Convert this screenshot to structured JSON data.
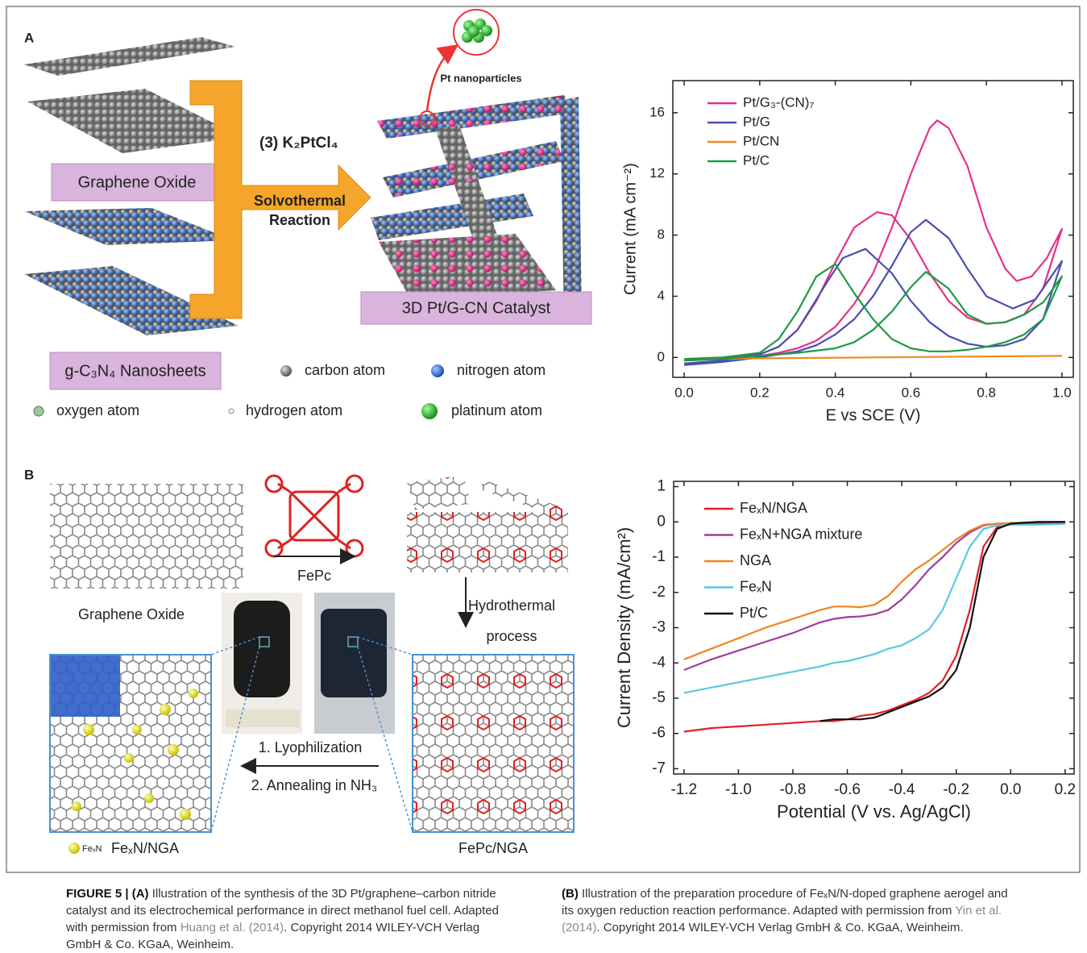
{
  "panel_a": {
    "label": "A",
    "pt_nanoparticles": "Pt nanoparticles",
    "graphene_oxide": "Graphene Oxide",
    "reagent": "(3) K₂PtCl₄",
    "reaction": [
      "Solvothermal",
      "Reaction"
    ],
    "product": "3D Pt/G-CN Catalyst",
    "nanosheets": "g-C₃N₄ Nanosheets",
    "atoms": [
      "carbon atom",
      "nitrogen atom",
      "oxygen atom",
      "hydrogen atom",
      "platinum atom"
    ]
  },
  "panel_b": {
    "label": "B",
    "graphene_oxide": "Graphene Oxide",
    "fepc": "FePc",
    "process": [
      "Hydrothermal",
      "process"
    ],
    "steps": [
      "1. Lyophilization",
      "2. Annealing in NH₃"
    ],
    "fexn": "FeₓN",
    "product": "FeₓN/NGA",
    "intermediate": "FePc/NGA"
  },
  "chart_data": [
    {
      "type": "line",
      "x_label": "E vs SCE (V)",
      "y_label": "Current (mA cm⁻²)",
      "xlim": [
        -0.03,
        1.03
      ],
      "ylim": [
        -1.3,
        18.1
      ],
      "xticks": [
        {
          "value": 0,
          "label": "0.0"
        },
        0.2,
        0.4,
        0.6,
        0.8,
        {
          "value": 1,
          "label": "1.0"
        }
      ],
      "yticks": [
        0,
        4,
        8,
        12,
        16
      ],
      "legend": "upper left",
      "series": [
        {
          "name": "Pt/G₃-(CN)₇",
          "color": "#e5318a",
          "x": [
            0,
            0.1,
            0.2,
            0.25,
            0.3,
            0.35,
            0.4,
            0.45,
            0.5,
            0.55,
            0.6,
            0.65,
            0.67,
            0.7,
            0.75,
            0.8,
            0.85,
            0.88,
            0.92,
            0.96,
            1.0,
            0.95,
            0.9,
            0.85,
            0.8,
            0.75,
            0.7,
            0.65,
            0.6,
            0.55,
            0.51,
            0.45,
            0.4,
            0.35,
            0.3,
            0.25,
            0.2,
            0.1,
            0.0
          ],
          "values": [
            -0.2,
            -0.1,
            0.1,
            0.3,
            0.6,
            1.1,
            2.0,
            3.5,
            5.5,
            8.5,
            12,
            15,
            15.5,
            15,
            12.5,
            8.5,
            5.8,
            5.0,
            5.3,
            6.5,
            8.4,
            4.5,
            2.8,
            2.3,
            2.2,
            2.6,
            3.7,
            5.5,
            7.7,
            9.3,
            9.5,
            8.5,
            6.2,
            3.7,
            1.8,
            0.7,
            0.2,
            0,
            -0.1
          ]
        },
        {
          "name": "Pt/G",
          "color": "#4a4fb0",
          "x": [
            0,
            0.1,
            0.2,
            0.3,
            0.35,
            0.4,
            0.45,
            0.5,
            0.55,
            0.6,
            0.64,
            0.7,
            0.75,
            0.8,
            0.87,
            0.93,
            1.0,
            0.95,
            0.9,
            0.85,
            0.8,
            0.75,
            0.7,
            0.65,
            0.6,
            0.55,
            0.48,
            0.42,
            0.38,
            0.35,
            0.3,
            0.25,
            0.2,
            0.1,
            0.0
          ],
          "values": [
            -0.5,
            -0.3,
            0,
            0.4,
            0.8,
            1.5,
            2.5,
            4.0,
            6.0,
            8.2,
            9.0,
            7.8,
            5.8,
            4.0,
            3.2,
            3.8,
            6.3,
            2.5,
            1.2,
            0.8,
            0.7,
            0.9,
            1.4,
            2.3,
            3.7,
            5.5,
            7.1,
            6.5,
            5.0,
            3.8,
            1.8,
            0.7,
            0.2,
            -0.2,
            -0.4
          ]
        },
        {
          "name": "Pt/CN",
          "color": "#f08a1e",
          "x": [
            0,
            0.5,
            1.0
          ],
          "values": [
            -0.1,
            0,
            0.1
          ]
        },
        {
          "name": "Pt/C",
          "color": "#1e9a45",
          "x": [
            0,
            0.1,
            0.2,
            0.3,
            0.4,
            0.45,
            0.5,
            0.55,
            0.6,
            0.64,
            0.7,
            0.75,
            0.8,
            0.85,
            0.9,
            0.95,
            1.0,
            0.95,
            0.9,
            0.85,
            0.8,
            0.75,
            0.7,
            0.65,
            0.6,
            0.55,
            0.5,
            0.45,
            0.4,
            0.35,
            0.3,
            0.25,
            0.2,
            0.1,
            0.0
          ],
          "values": [
            -0.2,
            -0.1,
            0.1,
            0.3,
            0.6,
            1.0,
            1.8,
            3.0,
            4.6,
            5.6,
            4.5,
            2.8,
            2.2,
            2.3,
            2.8,
            3.6,
            5.3,
            2.5,
            1.5,
            1.0,
            0.7,
            0.5,
            0.4,
            0.4,
            0.6,
            1.2,
            2.5,
            4.2,
            6.1,
            5.3,
            3.0,
            1.2,
            0.3,
            0,
            -0.1
          ]
        }
      ]
    },
    {
      "type": "line",
      "x_label": "Potential (V vs. Ag/AgCl)",
      "y_label": "Current Density  (mA/cm²)",
      "xlim": [
        -1.238,
        0.233
      ],
      "ylim": [
        -7.15,
        1.15
      ],
      "xticks": [
        -1.2,
        {
          "value": -1,
          "label": "-1.0"
        },
        -0.8,
        -0.6,
        -0.4,
        -0.2,
        {
          "value": 0,
          "label": "0.0"
        },
        0.2
      ],
      "yticks": [
        1,
        0,
        -1,
        -2,
        -3,
        -4,
        -5,
        -6,
        -7
      ],
      "legend": "upper left",
      "x": [
        -1.2,
        -1.1,
        -1.0,
        -0.9,
        -0.8,
        -0.7,
        -0.65,
        -0.6,
        -0.55,
        -0.5,
        -0.45,
        -0.4,
        -0.35,
        -0.3,
        -0.25,
        -0.2,
        -0.15,
        -0.1,
        -0.05,
        0.0,
        0.1,
        0.2
      ],
      "series": [
        {
          "name": "FeₓN/NGA",
          "color": "#e41e26",
          "values": [
            -5.95,
            -5.85,
            -5.8,
            -5.75,
            -5.7,
            -5.65,
            -5.65,
            -5.6,
            -5.5,
            -5.45,
            -5.35,
            -5.2,
            -5.05,
            -4.85,
            -4.5,
            -3.8,
            -2.5,
            -0.7,
            -0.15,
            -0.05,
            0,
            0
          ]
        },
        {
          "name": "FeₓN+NGA mixture",
          "color": "#a03ca0",
          "values": [
            -4.2,
            -3.9,
            -3.65,
            -3.4,
            -3.15,
            -2.85,
            -2.75,
            -2.7,
            -2.68,
            -2.62,
            -2.5,
            -2.2,
            -1.8,
            -1.35,
            -1.0,
            -0.6,
            -0.3,
            -0.1,
            -0.05,
            -0.05,
            -0.05,
            -0.05
          ]
        },
        {
          "name": "NGA",
          "color": "#f0841e",
          "values": [
            -3.9,
            -3.6,
            -3.3,
            -3.0,
            -2.75,
            -2.5,
            -2.4,
            -2.4,
            -2.42,
            -2.35,
            -2.1,
            -1.7,
            -1.35,
            -1.1,
            -0.8,
            -0.5,
            -0.25,
            -0.08,
            -0.05,
            -0.03,
            0,
            0
          ]
        },
        {
          "name": "FeₓN",
          "color": "#5bc8e0",
          "values": [
            -4.85,
            -4.7,
            -4.55,
            -4.4,
            -4.25,
            -4.1,
            -4.0,
            -3.95,
            -3.85,
            -3.75,
            -3.6,
            -3.5,
            -3.3,
            -3.05,
            -2.5,
            -1.6,
            -0.7,
            -0.2,
            -0.1,
            -0.08,
            -0.08,
            -0.06
          ]
        },
        {
          "name": "Pt/C",
          "color": "#111111",
          "values": [
            null,
            null,
            null,
            null,
            null,
            -5.65,
            -5.6,
            -5.6,
            -5.6,
            -5.55,
            -5.4,
            -5.25,
            -5.1,
            -4.95,
            -4.7,
            -4.2,
            -3.0,
            -1.0,
            -0.2,
            -0.05,
            0,
            0
          ]
        }
      ]
    }
  ],
  "caption": {
    "left": {
      "label": "FIGURE 5 | (A)",
      "text": "Illustration of the synthesis of the 3D Pt/graphene–carbon nitride catalyst and its electrochemical performance in direct methanol fuel cell. Adapted with permission from",
      "link": "Huang et al. (2014)",
      "end": ". Copyright 2014 WILEY-VCH Verlag GmbH & Co. KGaA, Weinheim."
    },
    "right": {
      "label": "(B)",
      "text": "Illustration of the preparation procedure of FeₓN/N-doped graphene aerogel and its oxygen reduction reaction performance. Adapted with permission from",
      "link": "Yin et al. (2014)",
      "end": ". Copyright 2014 WILEY-VCH Verlag GmbH & Co. KGaA, Weinheim."
    }
  }
}
